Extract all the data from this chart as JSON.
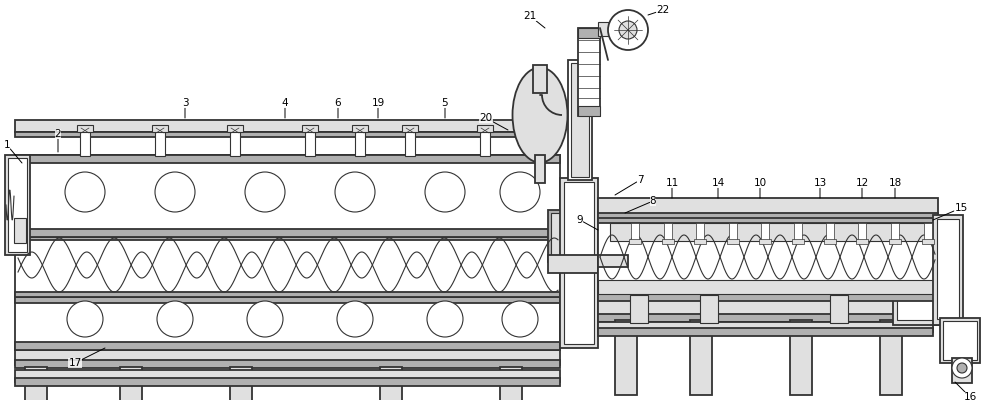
{
  "bg_color": "#ffffff",
  "line_color": "#333333",
  "fill_light": "#e0e0e0",
  "fill_mid": "#b0b0b0",
  "fill_dark": "#808080",
  "figw": 10.0,
  "figh": 4.0,
  "dpi": 100
}
